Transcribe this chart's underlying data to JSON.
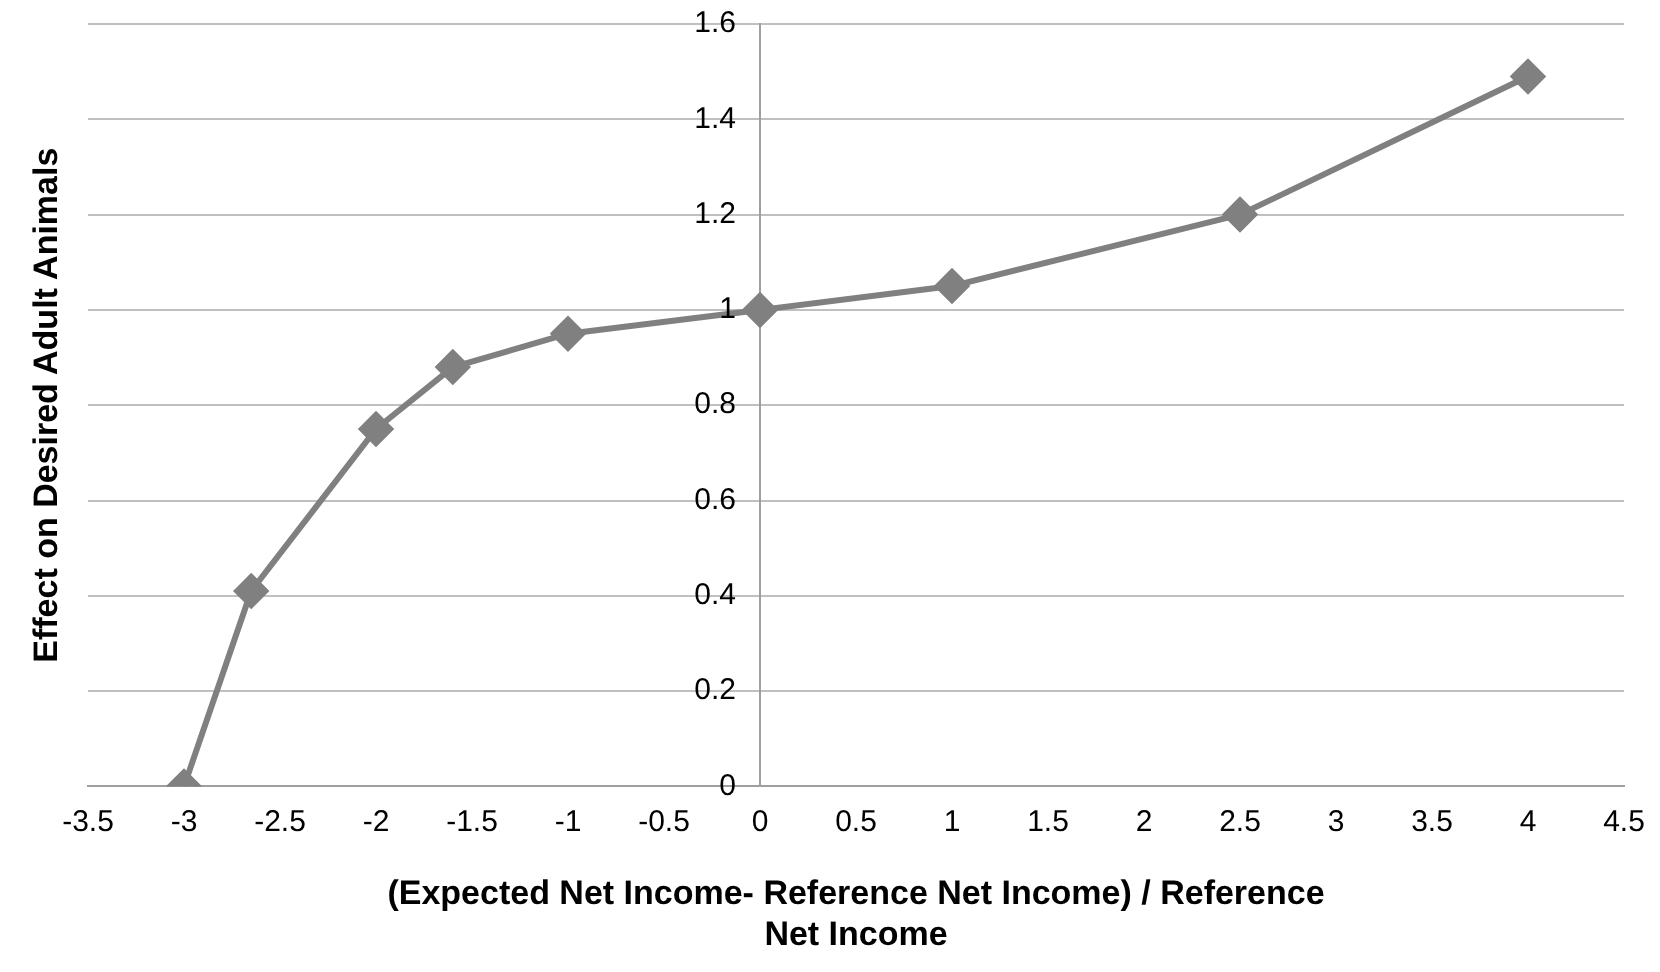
{
  "chart_data": {
    "type": "line",
    "xlabel": "(Expected Net Income- Reference Net Income) / Reference Net Income",
    "ylabel": "Effect on Desired Adult Animals",
    "x": [
      -3,
      -2.65,
      -2,
      -1.6,
      -1,
      0,
      1,
      2.5,
      4
    ],
    "series": [
      {
        "color": "#808080",
        "values": [
          0,
          0.41,
          0.75,
          0.88,
          0.95,
          1,
          1.05,
          1.2,
          1.49
        ]
      }
    ],
    "xlim": [
      -3.5,
      4.5
    ],
    "xticks": [
      -3.5,
      -3,
      -2.5,
      -2,
      -1.5,
      -1,
      -0.5,
      0,
      0.5,
      1,
      1.5,
      2,
      2.5,
      3,
      3.5,
      4,
      4.5
    ],
    "ylim": [
      0,
      1.6
    ],
    "yticks": [
      0,
      0.2,
      0.4,
      0.6,
      0.8,
      1,
      1.2,
      1.4,
      1.6
    ],
    "grid": "y",
    "legend": false,
    "marker": "diamond",
    "line_style": "solid"
  }
}
